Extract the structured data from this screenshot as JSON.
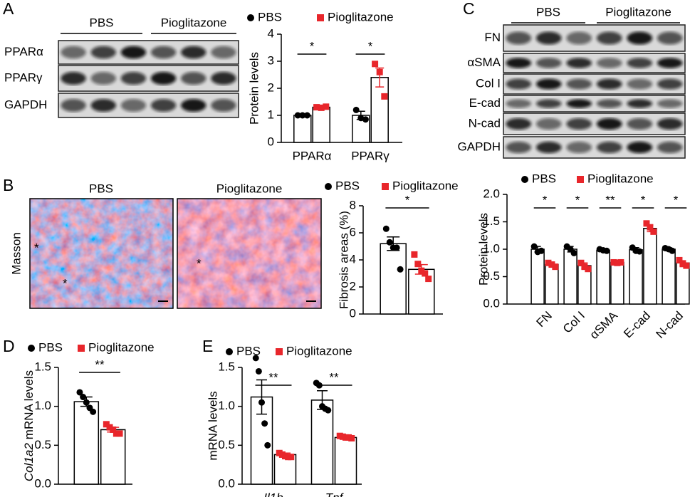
{
  "panel_labels": [
    "A",
    "B",
    "C",
    "D",
    "E"
  ],
  "blots": [
    {
      "groups": [
        "PBS",
        "Pioglitazone"
      ],
      "rows": [
        "PPARα",
        "PPARγ",
        "GAPDH"
      ]
    },
    {
      "groups": [
        "PBS",
        "Pioglitazone"
      ],
      "rows": [
        "FN",
        "αSMA",
        "Col I",
        "E-cad",
        "N-cad",
        "GAPDH"
      ]
    }
  ],
  "histology": {
    "stain": "Masson",
    "groups": [
      "PBS",
      "Pioglitazone"
    ],
    "markers": [
      "*",
      "*",
      "*"
    ]
  },
  "chart_data": [
    {
      "type": "bar",
      "y_label": "Protein levels",
      "categories": [
        "PPARα",
        "PPARγ"
      ],
      "series": [
        {
          "name": "PBS",
          "color": "#000000",
          "marker": "circle",
          "values": [
            1.0,
            1.0
          ],
          "errors": [
            0.02,
            0.15
          ],
          "points": [
            [
              1.0,
              1.0,
              1.0
            ],
            [
              1.2,
              0.9,
              0.85
            ]
          ]
        },
        {
          "name": "Pioglitazone",
          "color": "#e8262b",
          "marker": "square",
          "values": [
            1.3,
            2.4
          ],
          "errors": [
            0.03,
            0.35
          ],
          "points": [
            [
              1.3,
              1.28,
              1.32
            ],
            [
              2.9,
              2.6,
              1.7
            ]
          ]
        }
      ],
      "significance": [
        "*",
        "*"
      ],
      "ylim": [
        0,
        4
      ],
      "yticks": [
        0,
        1,
        2,
        3,
        4
      ]
    },
    {
      "type": "bar",
      "y_label": "Fibrosis areas (%)",
      "categories": [
        null
      ],
      "series": [
        {
          "name": "PBS",
          "color": "#000000",
          "marker": "circle",
          "values": [
            5.2
          ],
          "errors": [
            0.5
          ],
          "points": [
            [
              6.3,
              5.3,
              4.9,
              4.9,
              3.3
            ]
          ]
        },
        {
          "name": "Pioglitazone",
          "color": "#e8262b",
          "marker": "square",
          "values": [
            3.3
          ],
          "errors": [
            0.35
          ],
          "points": [
            [
              4.4,
              3.7,
              3.2,
              3.0,
              2.6
            ]
          ]
        }
      ],
      "significance": [
        "*"
      ],
      "ylim": [
        0,
        8
      ],
      "yticks": [
        0,
        2,
        4,
        6,
        8
      ]
    },
    {
      "type": "bar",
      "y_label": "Protein levels",
      "categories": [
        "FN",
        "Col I",
        "αSMA",
        "E-cad",
        "N-cad"
      ],
      "x_label_rotation": -45,
      "series": [
        {
          "name": "PBS",
          "color": "#000000",
          "marker": "circle",
          "values": [
            1.0,
            1.0,
            0.98,
            0.99,
            1.0
          ],
          "errors": [
            0.05,
            0.05,
            0.02,
            0.04,
            0.03
          ],
          "points": [
            [
              1.05,
              0.95,
              0.97
            ],
            [
              1.05,
              1.0,
              0.93
            ],
            [
              1.0,
              0.98,
              0.97
            ],
            [
              1.03,
              0.97,
              0.96
            ],
            [
              1.02,
              1.0,
              0.97
            ]
          ]
        },
        {
          "name": "Pioglitazone",
          "color": "#e8262b",
          "marker": "square",
          "values": [
            0.72,
            0.7,
            0.76,
            1.38,
            0.75
          ],
          "errors": [
            0.03,
            0.05,
            0.01,
            0.06,
            0.04
          ],
          "points": [
            [
              0.75,
              0.72,
              0.68
            ],
            [
              0.75,
              0.68,
              0.64
            ],
            [
              0.76,
              0.75,
              0.76
            ],
            [
              1.47,
              1.4,
              1.32
            ],
            [
              0.8,
              0.73,
              0.7
            ]
          ]
        }
      ],
      "significance": [
        "*",
        "*",
        "**",
        "*",
        "*"
      ],
      "ylim": [
        0,
        2
      ],
      "yticks": [
        {
          "value": 0,
          "label": "0.0"
        },
        0.5,
        {
          "value": 1,
          "label": "1.0"
        },
        1.5,
        {
          "value": 2,
          "label": "2.0"
        }
      ]
    },
    {
      "type": "bar",
      "y_label": [
        "Col1a2",
        "mRNA levels"
      ],
      "categories": [
        null
      ],
      "series": [
        {
          "name": "PBS",
          "color": "#000000",
          "marker": "circle",
          "values": [
            1.06
          ],
          "errors": [
            0.06
          ],
          "points": [
            [
              1.18,
              1.12,
              1.05,
              0.98,
              0.93
            ]
          ]
        },
        {
          "name": "Pioglitazone",
          "color": "#e8262b",
          "marker": "square",
          "values": [
            0.7
          ],
          "errors": [
            0.03
          ],
          "points": [
            [
              0.77,
              0.73,
              0.7,
              0.65,
              0.65
            ]
          ]
        }
      ],
      "significance": [
        "**"
      ],
      "ylim": [
        0,
        1.5
      ],
      "yticks": [
        {
          "value": 0,
          "label": "0.0"
        },
        0.5,
        {
          "value": 1,
          "label": "1.0"
        },
        1.5
      ]
    },
    {
      "type": "bar",
      "y_label": "mRNA levels",
      "categories": [
        "Il1b",
        "Tnf"
      ],
      "italic_categories": true,
      "series": [
        {
          "name": "PBS",
          "color": "#000000",
          "marker": "circle",
          "values": [
            1.12,
            1.08
          ],
          "errors": [
            0.22,
            0.12
          ],
          "points": [
            [
              1.62,
              1.45,
              1.05,
              0.78,
              0.5
            ],
            [
              1.3,
              1.27,
              1.0,
              0.97,
              0.95
            ]
          ]
        },
        {
          "name": "Pioglitazone",
          "color": "#e8262b",
          "marker": "square",
          "values": [
            0.38,
            0.6
          ],
          "errors": [
            0.02,
            0.01
          ],
          "points": [
            [
              0.4,
              0.38,
              0.36,
              0.35,
              0.35
            ],
            [
              0.62,
              0.61,
              0.6,
              0.6,
              0.59
            ]
          ]
        }
      ],
      "significance": [
        "**",
        "**"
      ],
      "ylim": [
        0,
        1.5
      ],
      "yticks": [
        {
          "value": 0,
          "label": "0.0"
        },
        0.5,
        {
          "value": 1,
          "label": "1.0"
        },
        1.5
      ]
    }
  ]
}
